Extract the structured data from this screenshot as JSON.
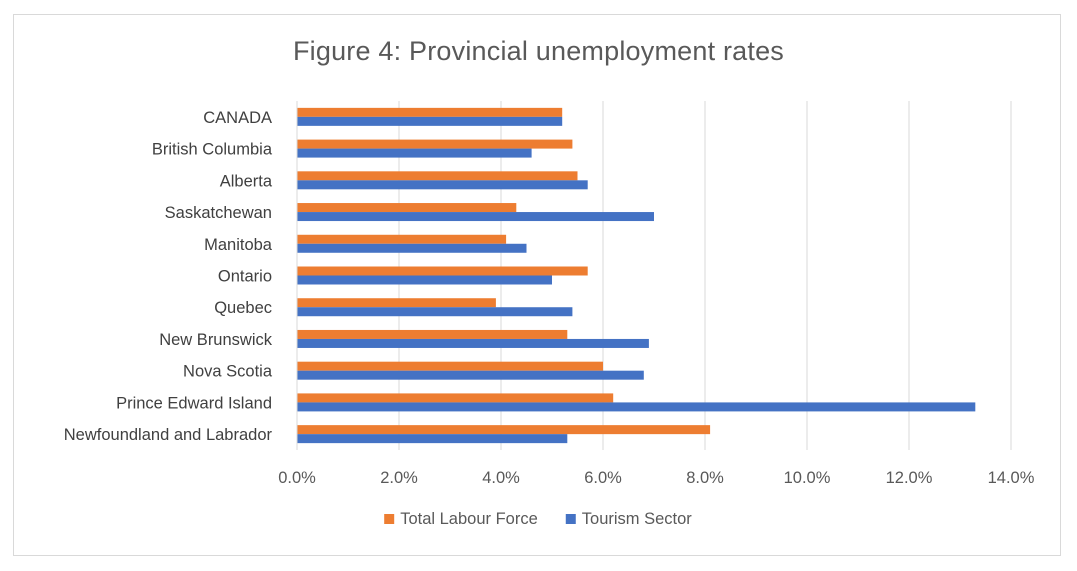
{
  "chart_data": {
    "type": "bar",
    "orientation": "horizontal",
    "title": "Figure 4: Provincial unemployment rates",
    "categories": [
      "CANADA",
      "British Columbia",
      "Alberta",
      "Saskatchewan",
      "Manitoba",
      "Ontario",
      "Quebec",
      "New Brunswick",
      "Nova Scotia",
      "Prince Edward Island",
      "Newfoundland and Labrador"
    ],
    "series": [
      {
        "name": "Total Labour Force",
        "color": "#ED7D31",
        "values": [
          5.2,
          5.4,
          5.5,
          4.3,
          4.1,
          5.7,
          3.9,
          5.3,
          6.0,
          6.2,
          8.1
        ]
      },
      {
        "name": "Tourism Sector",
        "color": "#4472C4",
        "values": [
          5.2,
          4.6,
          5.7,
          7.0,
          4.5,
          5.0,
          5.4,
          6.9,
          6.8,
          13.3,
          5.3
        ]
      }
    ],
    "xlim": [
      0,
      14
    ],
    "x_ticks": [
      "0.0%",
      "2.0%",
      "4.0%",
      "6.0%",
      "8.0%",
      "10.0%",
      "12.0%",
      "14.0%"
    ],
    "grid": true,
    "legend": "bottom"
  }
}
